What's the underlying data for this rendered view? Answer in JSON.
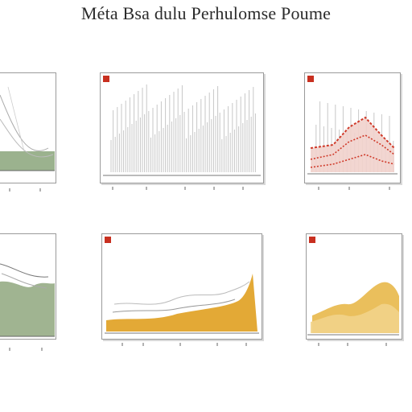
{
  "header": {
    "title": "Méta Bsa dulu Perhulomse Poume"
  },
  "colors": {
    "frame": "#9a9a9a",
    "green": "#8aa57a",
    "gray_line": "#b8b8b8",
    "red": "#d03a2a",
    "orange": "#e0a020",
    "blue_marker": "#2a3aa0"
  },
  "panels": [
    {
      "id": "p1",
      "title": "",
      "marker_color": "",
      "chart_data": {
        "type": "area",
        "series": []
      }
    },
    {
      "id": "p2",
      "title": "",
      "marker_color": "#c83020",
      "chart_data": {
        "type": "bar",
        "series": []
      }
    },
    {
      "id": "p3",
      "title": "",
      "marker_color": "#c83020",
      "chart_data": {
        "type": "area",
        "series": []
      }
    },
    {
      "id": "p4",
      "title": "",
      "marker_color": "",
      "chart_data": {
        "type": "area",
        "series": []
      }
    },
    {
      "id": "p5",
      "title": "",
      "marker_color": "#c83020",
      "chart_data": {
        "type": "area",
        "series": []
      }
    },
    {
      "id": "p6",
      "title": "",
      "marker_color": "#c83020",
      "chart_data": {
        "type": "area",
        "series": []
      }
    }
  ]
}
